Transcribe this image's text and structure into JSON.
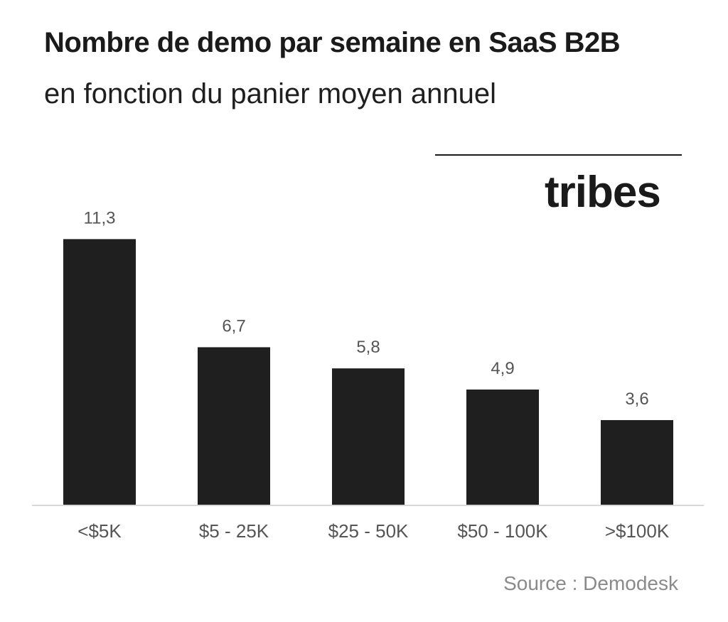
{
  "header": {
    "title": "Nombre de demo par semaine en SaaS B2B",
    "subtitle": "en fonction du panier moyen annuel"
  },
  "brand": {
    "logo_text": "tribes"
  },
  "footer": {
    "source": "Source : Demodesk"
  },
  "chart_data": {
    "type": "bar",
    "categories": [
      "<$5K",
      "$5 - 25K",
      "$25 - 50K",
      "$50 - 100K",
      ">$100K"
    ],
    "values": [
      11.3,
      6.7,
      5.8,
      4.9,
      3.6
    ],
    "value_labels": [
      "11,3",
      "6,7",
      "5,8",
      "4,9",
      "3,6"
    ],
    "title": "Nombre de demo par semaine en SaaS B2B",
    "subtitle": "en fonction du panier moyen annuel",
    "xlabel": "",
    "ylabel": "",
    "ylim": [
      0,
      12.4
    ],
    "grid": false,
    "bar_color": "#1f1f1f"
  }
}
